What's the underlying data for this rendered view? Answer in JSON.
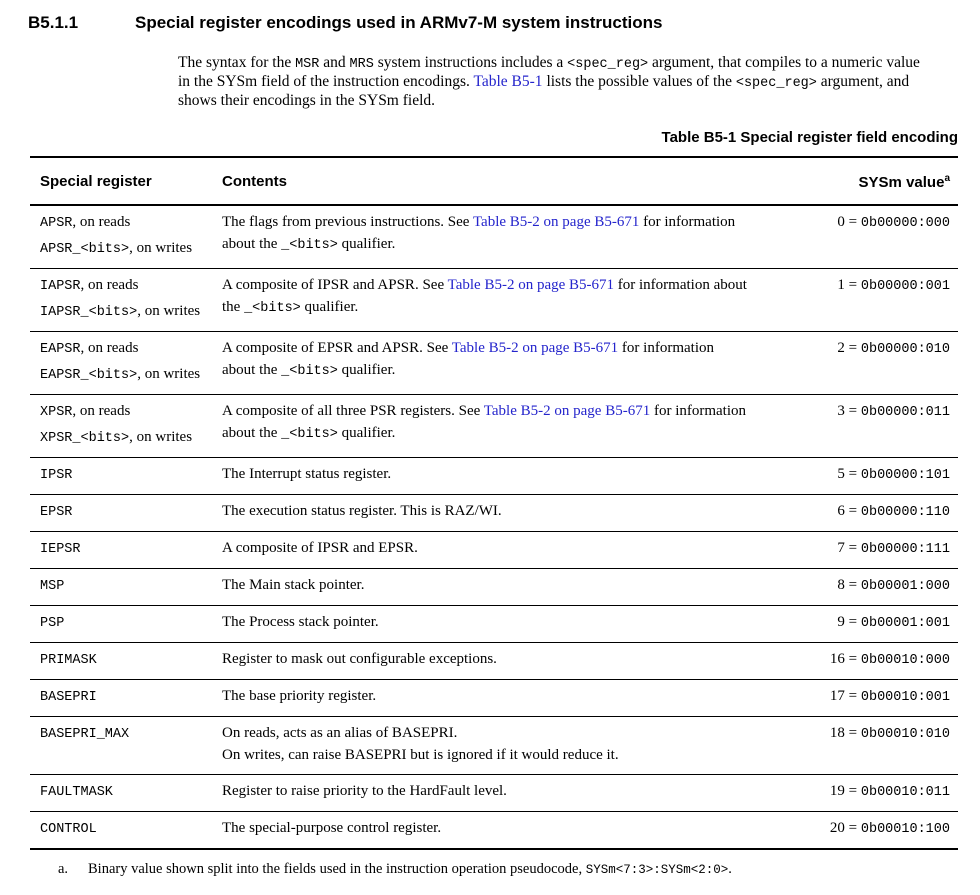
{
  "section": {
    "number": "B5.1.1",
    "title": "Special register encodings used in ARMv7-M system instructions"
  },
  "intro_lines": [
    [
      {
        "t": "The syntax for the "
      },
      {
        "t": "MSR",
        "s": "mono"
      },
      {
        "t": " and "
      },
      {
        "t": "MRS",
        "s": "mono"
      },
      {
        "t": " system instructions includes a "
      },
      {
        "t": "<spec_reg>",
        "s": "mono"
      },
      {
        "t": " argument, that compiles to a numeric value"
      }
    ],
    [
      {
        "t": "in the SYSm field of the instruction encodings. "
      },
      {
        "t": "Table B5-1",
        "s": "link"
      },
      {
        "t": " lists the possible values of the "
      },
      {
        "t": "<spec_reg>",
        "s": "mono"
      },
      {
        "t": " argument, and"
      }
    ],
    [
      {
        "t": "shows their encodings in the SYSm field."
      }
    ]
  ],
  "table": {
    "caption": "Table B5-1 Special register field encoding",
    "headers": {
      "col1": "Special register",
      "col2": "Contents",
      "col3": "SYSm value",
      "col3_sup": "a"
    },
    "rows": [
      {
        "reg": [
          [
            {
              "t": "APSR",
              "s": "mono"
            },
            {
              "t": ", on reads"
            }
          ],
          [
            {
              "t": "APSR_<bits>",
              "s": "mono"
            },
            {
              "t": ", on writes"
            }
          ]
        ],
        "contents": [
          [
            {
              "t": "The flags from previous instructions. See "
            },
            {
              "t": "Table B5-2 on page B5-671",
              "s": "link"
            },
            {
              "t": " for information"
            }
          ],
          [
            {
              "t": "about the "
            },
            {
              "t": "_<bits>",
              "s": "mono"
            },
            {
              "t": " qualifier."
            }
          ]
        ],
        "sysm": [
          [
            {
              "t": "0 = "
            },
            {
              "t": "0b00000:000",
              "s": "mono"
            }
          ]
        ]
      },
      {
        "reg": [
          [
            {
              "t": "IAPSR",
              "s": "mono"
            },
            {
              "t": ", on reads"
            }
          ],
          [
            {
              "t": "IAPSR_<bits>",
              "s": "mono"
            },
            {
              "t": ", on writes"
            }
          ]
        ],
        "contents": [
          [
            {
              "t": "A composite of IPSR and APSR. See "
            },
            {
              "t": "Table B5-2 on page B5-671",
              "s": "link"
            },
            {
              "t": " for information about"
            }
          ],
          [
            {
              "t": "the "
            },
            {
              "t": "_<bits>",
              "s": "mono"
            },
            {
              "t": " qualifier."
            }
          ]
        ],
        "sysm": [
          [
            {
              "t": "1 = "
            },
            {
              "t": "0b00000:001",
              "s": "mono"
            }
          ]
        ]
      },
      {
        "reg": [
          [
            {
              "t": "EAPSR",
              "s": "mono"
            },
            {
              "t": ", on reads"
            }
          ],
          [
            {
              "t": "EAPSR_<bits>",
              "s": "mono"
            },
            {
              "t": ", on writes"
            }
          ]
        ],
        "contents": [
          [
            {
              "t": "A composite of EPSR and APSR. See "
            },
            {
              "t": "Table B5-2 on page B5-671",
              "s": "link"
            },
            {
              "t": " for information"
            }
          ],
          [
            {
              "t": "about the "
            },
            {
              "t": "_<bits>",
              "s": "mono"
            },
            {
              "t": " qualifier."
            }
          ]
        ],
        "sysm": [
          [
            {
              "t": "2 = "
            },
            {
              "t": "0b00000:010",
              "s": "mono"
            }
          ]
        ]
      },
      {
        "reg": [
          [
            {
              "t": "XPSR",
              "s": "mono"
            },
            {
              "t": ", on reads"
            }
          ],
          [
            {
              "t": "XPSR_<bits>",
              "s": "mono"
            },
            {
              "t": ", on writes"
            }
          ]
        ],
        "contents": [
          [
            {
              "t": "A composite of all three PSR registers. See "
            },
            {
              "t": "Table B5-2 on page B5-671",
              "s": "link"
            },
            {
              "t": " for information"
            }
          ],
          [
            {
              "t": "about the "
            },
            {
              "t": "_<bits>",
              "s": "mono"
            },
            {
              "t": " qualifier."
            }
          ]
        ],
        "sysm": [
          [
            {
              "t": "3 = "
            },
            {
              "t": "0b00000:011",
              "s": "mono"
            }
          ]
        ]
      },
      {
        "reg": [
          [
            {
              "t": "IPSR",
              "s": "mono"
            }
          ]
        ],
        "contents": [
          [
            {
              "t": "The Interrupt status register."
            }
          ]
        ],
        "sysm": [
          [
            {
              "t": "5 = "
            },
            {
              "t": "0b00000:101",
              "s": "mono"
            }
          ]
        ]
      },
      {
        "reg": [
          [
            {
              "t": "EPSR",
              "s": "mono"
            }
          ]
        ],
        "contents": [
          [
            {
              "t": "The execution status register. This is RAZ/WI."
            }
          ]
        ],
        "sysm": [
          [
            {
              "t": "6 = "
            },
            {
              "t": "0b00000:110",
              "s": "mono"
            }
          ]
        ]
      },
      {
        "reg": [
          [
            {
              "t": "IEPSR",
              "s": "mono"
            }
          ]
        ],
        "contents": [
          [
            {
              "t": "A composite of IPSR and EPSR."
            }
          ]
        ],
        "sysm": [
          [
            {
              "t": "7 = "
            },
            {
              "t": "0b00000:111",
              "s": "mono"
            }
          ]
        ]
      },
      {
        "reg": [
          [
            {
              "t": "MSP",
              "s": "mono"
            }
          ]
        ],
        "contents": [
          [
            {
              "t": "The Main stack pointer."
            }
          ]
        ],
        "sysm": [
          [
            {
              "t": "8 = "
            },
            {
              "t": "0b00001:000",
              "s": "mono"
            }
          ]
        ]
      },
      {
        "reg": [
          [
            {
              "t": "PSP",
              "s": "mono"
            }
          ]
        ],
        "contents": [
          [
            {
              "t": "The Process stack pointer."
            }
          ]
        ],
        "sysm": [
          [
            {
              "t": "9 = "
            },
            {
              "t": "0b00001:001",
              "s": "mono"
            }
          ]
        ]
      },
      {
        "reg": [
          [
            {
              "t": "PRIMASK",
              "s": "mono"
            }
          ]
        ],
        "contents": [
          [
            {
              "t": "Register to mask out configurable exceptions."
            }
          ]
        ],
        "sysm": [
          [
            {
              "t": "16 = "
            },
            {
              "t": "0b00010:000",
              "s": "mono"
            }
          ]
        ]
      },
      {
        "reg": [
          [
            {
              "t": "BASEPRI",
              "s": "mono"
            }
          ]
        ],
        "contents": [
          [
            {
              "t": "The base priority register."
            }
          ]
        ],
        "sysm": [
          [
            {
              "t": "17 = "
            },
            {
              "t": "0b00010:001",
              "s": "mono"
            }
          ]
        ]
      },
      {
        "reg": [
          [
            {
              "t": "BASEPRI_MAX",
              "s": "mono"
            }
          ]
        ],
        "contents": [
          [
            {
              "t": "On reads, acts as an alias of BASEPRI."
            }
          ],
          [
            {
              "t": "On writes, can raise BASEPRI but is ignored if it would reduce it."
            }
          ]
        ],
        "sysm": [
          [
            {
              "t": "18 = "
            },
            {
              "t": "0b00010:010",
              "s": "mono"
            }
          ]
        ]
      },
      {
        "reg": [
          [
            {
              "t": "FAULTMASK",
              "s": "mono"
            }
          ]
        ],
        "contents": [
          [
            {
              "t": "Register to raise priority to the HardFault level."
            }
          ]
        ],
        "sysm": [
          [
            {
              "t": "19 = "
            },
            {
              "t": "0b00010:011",
              "s": "mono"
            }
          ]
        ]
      },
      {
        "reg": [
          [
            {
              "t": "CONTROL",
              "s": "mono"
            }
          ]
        ],
        "contents": [
          [
            {
              "t": "The special-purpose control register."
            }
          ]
        ],
        "sysm": [
          [
            {
              "t": "20 = "
            },
            {
              "t": "0b00010:100",
              "s": "mono"
            }
          ]
        ]
      }
    ]
  },
  "footnote": {
    "marker": "a.",
    "segments": [
      {
        "t": "Binary value shown split into the fields used in the instruction operation pseudocode, "
      },
      {
        "t": "SYSm<7:3>:SYSm<2:0>",
        "s": "mono"
      },
      {
        "t": "."
      }
    ]
  },
  "colors": {
    "link": "#2424cc",
    "text": "#000000",
    "rule": "#000000"
  }
}
